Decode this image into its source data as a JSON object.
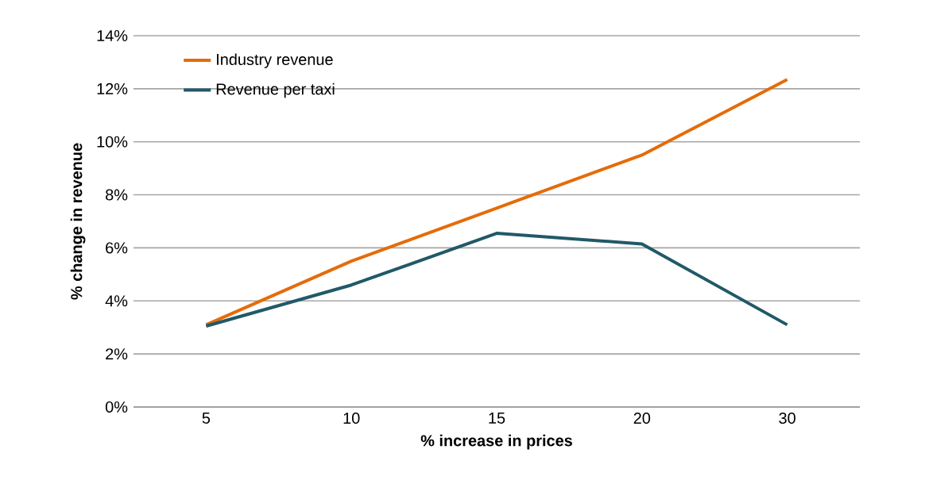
{
  "chart_data": {
    "type": "line",
    "xlabel": "% increase in prices",
    "ylabel": "% change in revenue",
    "categories": [
      "5",
      "10",
      "15",
      "20",
      "30"
    ],
    "series": [
      {
        "name": "Industry revenue",
        "color": "#e46c0a",
        "values": [
          3.1,
          5.5,
          7.5,
          9.5,
          12.35
        ]
      },
      {
        "name": "Revenue per taxi",
        "color": "#215968",
        "values": [
          3.05,
          4.6,
          6.55,
          6.15,
          3.1
        ]
      }
    ],
    "ylim": [
      0,
      14
    ],
    "yticks": [
      {
        "value": 0,
        "label": "0%"
      },
      {
        "value": 2,
        "label": "2%"
      },
      {
        "value": 4,
        "label": "4%"
      },
      {
        "value": 6,
        "label": "6%"
      },
      {
        "value": 8,
        "label": "8%"
      },
      {
        "value": 10,
        "label": "10%"
      },
      {
        "value": 12,
        "label": "12%"
      },
      {
        "value": 14,
        "label": "14%"
      }
    ],
    "grid": "y",
    "legend": "top left",
    "marker": "none",
    "line_style": "solid"
  }
}
